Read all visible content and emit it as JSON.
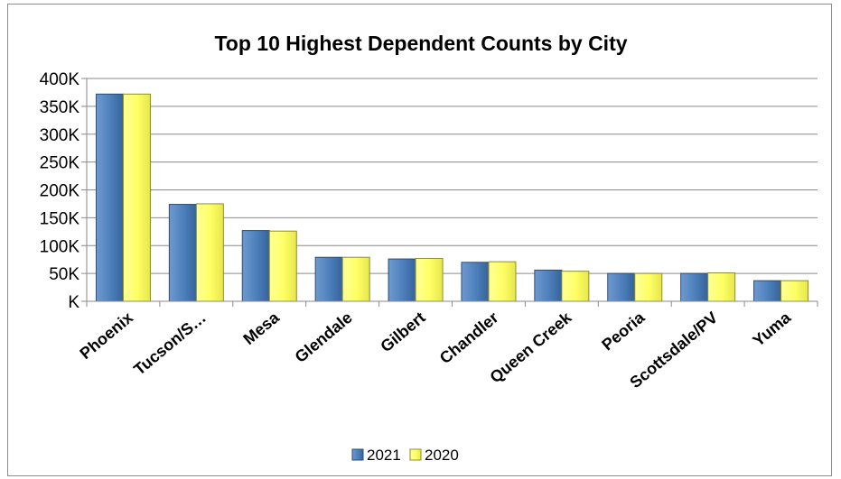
{
  "chart_data": {
    "type": "bar",
    "title": "Top 10 Highest Dependent Counts by City",
    "categories": [
      "Phoenix",
      "Tucson/S…",
      "Mesa",
      "Glendale",
      "Gilbert",
      "Chandler",
      "Queen Creek",
      "Peoria",
      "Scottsdale/PV",
      "Yuma"
    ],
    "series": [
      {
        "name": "2021",
        "values": [
          372000,
          174000,
          127000,
          79000,
          76000,
          70000,
          56000,
          50000,
          50000,
          37000
        ],
        "color": "#4f81bd"
      },
      {
        "name": "2020",
        "values": [
          372000,
          175000,
          126000,
          79000,
          77000,
          71000,
          54000,
          50000,
          51000,
          37000
        ],
        "color": "#ffff66"
      }
    ],
    "y_ticks": [
      "K",
      "50K",
      "100K",
      "150K",
      "200K",
      "250K",
      "300K",
      "350K",
      "400K"
    ],
    "ylim": [
      0,
      400000
    ],
    "grid": true,
    "legend_position": "bottom"
  }
}
